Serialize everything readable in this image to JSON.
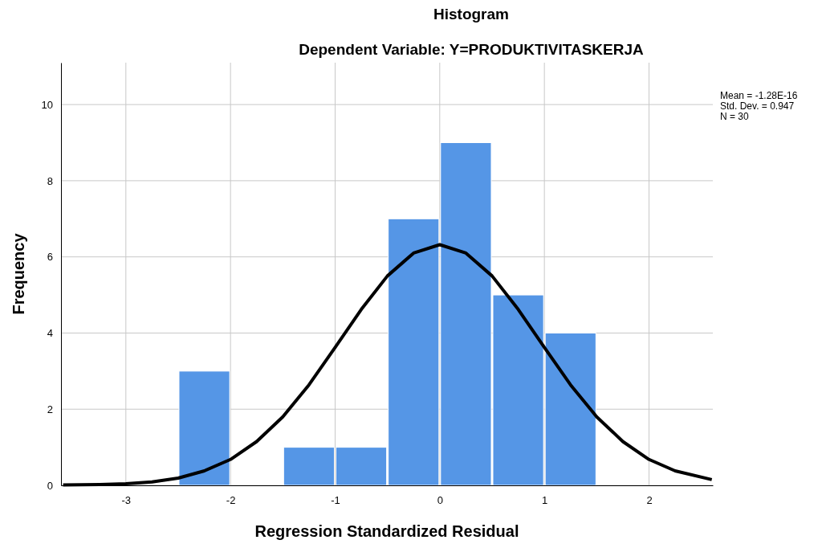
{
  "chart_data": {
    "type": "histogram",
    "title": "Histogram",
    "subtitle": "Dependent Variable: Y=PRODUKTIVITASKERJA",
    "xlabel": "Regression Standardized Residual",
    "ylabel": "Frequency",
    "bins": [
      -2.5,
      -2,
      -1.5,
      -1,
      -0.5,
      0,
      0.5,
      1,
      1.5
    ],
    "values": [
      3,
      0,
      1,
      1,
      7,
      9,
      5,
      4
    ],
    "color": "#5596e6",
    "series": [
      {
        "type": "line",
        "color": "#000000",
        "x": [
          -3.6,
          -3.25,
          -3,
          -2.75,
          -2.5,
          -2.25,
          -2,
          -1.75,
          -1.5,
          -1.25,
          -1,
          -0.75,
          -0.5,
          -0.25,
          0,
          0.25,
          0.5,
          0.75,
          1,
          1.25,
          1.5,
          1.75,
          2,
          2.25,
          2.6
        ],
        "values": [
          0.01,
          0.02,
          0.04,
          0.09,
          0.19,
          0.38,
          0.68,
          1.15,
          1.8,
          2.64,
          3.62,
          4.62,
          5.5,
          6.1,
          6.32,
          6.1,
          5.5,
          4.62,
          3.62,
          2.64,
          1.8,
          1.15,
          0.68,
          0.38,
          0.15
        ]
      }
    ],
    "xlim": [
      -3.62,
      2.61
    ],
    "xticks": [
      -3,
      -2,
      -1,
      0,
      1,
      2
    ],
    "ylim": [
      0,
      11.1
    ],
    "yticks": [
      0,
      2,
      4,
      6,
      8,
      10
    ],
    "grid": true,
    "marker": "none",
    "line_style": "solid",
    "annotations": [
      "Mean = -1.28E-16",
      "Std. Dev. = 0.947",
      "N = 30"
    ]
  }
}
